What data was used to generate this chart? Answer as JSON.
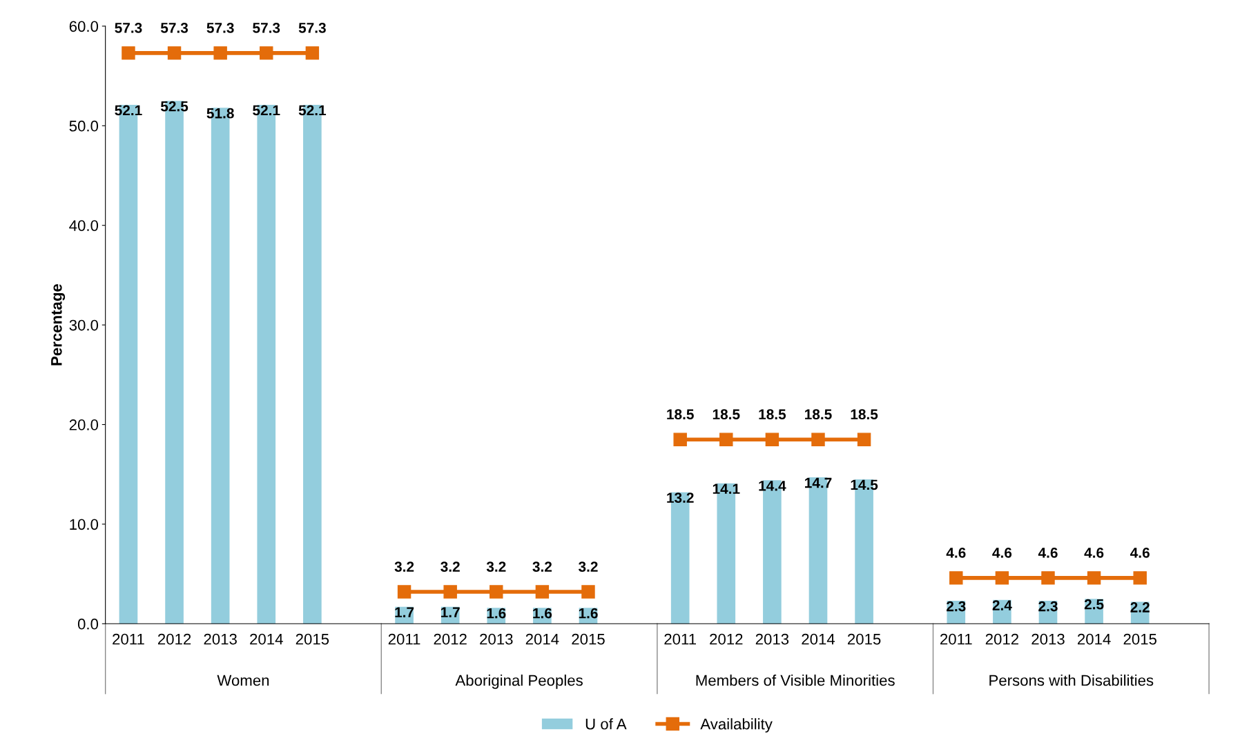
{
  "chart_data": {
    "type": "bar",
    "ylabel": "Percentage",
    "categories": [
      "2011",
      "2012",
      "2013",
      "2014",
      "2015",
      null,
      "2011",
      "2012",
      "2013",
      "2014",
      "2015",
      null,
      "2011",
      "2012",
      "2013",
      "2014",
      "2015",
      null,
      "2011",
      "2012",
      "2013",
      "2014",
      "2015",
      null
    ],
    "annotations": [
      "Women",
      "Aboriginal Peoples",
      "Members of Visible Minorities",
      "Persons with Disabilities"
    ],
    "series": [
      {
        "name": "U of A",
        "color": "#93cddd",
        "values": [
          52.1,
          52.5,
          51.8,
          52.1,
          52.1,
          null,
          1.7,
          1.7,
          1.6,
          1.6,
          1.6,
          null,
          13.2,
          14.1,
          14.4,
          14.7,
          14.5,
          null,
          2.3,
          2.4,
          2.3,
          2.5,
          2.2,
          null
        ]
      },
      {
        "name": "Availability",
        "type": "line",
        "color": "#e46c0a",
        "marker": "square",
        "values": [
          57.3,
          57.3,
          57.3,
          57.3,
          57.3,
          null,
          3.2,
          3.2,
          3.2,
          3.2,
          3.2,
          null,
          18.5,
          18.5,
          18.5,
          18.5,
          18.5,
          null,
          4.6,
          4.6,
          4.6,
          4.6,
          4.6,
          null
        ]
      }
    ],
    "ylim": [
      0,
      60
    ],
    "yticks": [
      {
        "value": 0,
        "label": "0.0"
      },
      {
        "value": 10,
        "label": "10.0"
      },
      {
        "value": 20,
        "label": "20.0"
      },
      {
        "value": 30,
        "label": "30.0"
      },
      {
        "value": 40,
        "label": "40.0"
      },
      {
        "value": 50,
        "label": "50.0"
      },
      {
        "value": 60,
        "label": "60.0"
      }
    ],
    "data_labels": true,
    "legend": "bottom",
    "grid": false
  }
}
